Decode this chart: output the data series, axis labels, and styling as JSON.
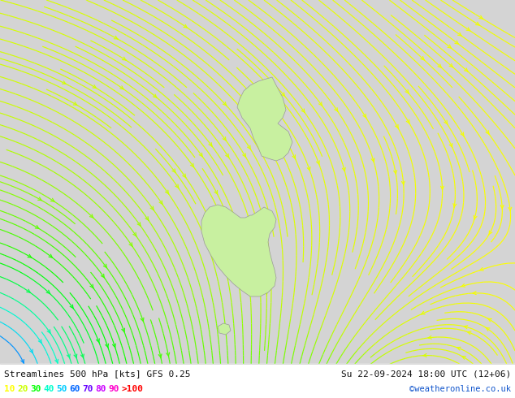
{
  "title_left": "Streamlines 500 hPa [kts] GFS 0.25",
  "title_right": "Su 22-09-2024 18:00 UTC (12+06)",
  "credit": "©weatheronline.co.uk",
  "legend_values": [
    "10",
    "20",
    "30",
    "40",
    "50",
    "60",
    "70",
    "80",
    "90",
    ">100"
  ],
  "legend_colors": [
    "#ffff00",
    "#ccff00",
    "#00ff00",
    "#00ffcc",
    "#00ccff",
    "#0066ff",
    "#6600ff",
    "#cc00ff",
    "#ff00cc",
    "#ff0000"
  ],
  "background_color": "#d4d4d4",
  "land_color": "#c8f0a0",
  "fig_width": 6.34,
  "fig_height": 4.9,
  "dpi": 100,
  "bottom_bar_height": 42
}
